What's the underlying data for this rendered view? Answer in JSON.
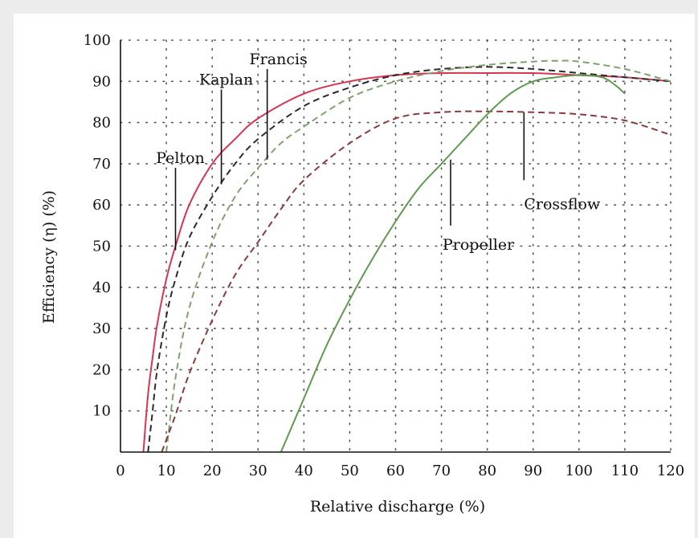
{
  "chart_data": {
    "type": "line",
    "title": "",
    "xlabel": "Relative discharge (%)",
    "ylabel": "Efficiency (η) (%)",
    "xlim": [
      0,
      120
    ],
    "ylim": [
      0,
      100
    ],
    "x_ticks": [
      0,
      10,
      20,
      30,
      40,
      50,
      60,
      70,
      80,
      90,
      100,
      110,
      120
    ],
    "y_ticks": [
      10,
      20,
      30,
      40,
      50,
      60,
      70,
      80,
      90,
      100
    ],
    "grid": "dotted",
    "legend": "none",
    "series": [
      {
        "name": "Pelton",
        "color": "#d6364f",
        "dash": "solid",
        "x": [
          5,
          6,
          7,
          8,
          10,
          12,
          15,
          20,
          25,
          30,
          40,
          50,
          60,
          70,
          80,
          90,
          100,
          110,
          120
        ],
        "y": [
          0,
          14,
          23,
          31,
          42,
          50,
          60,
          70,
          76,
          81,
          87,
          90,
          91.5,
          92,
          92,
          92,
          91.5,
          91,
          90
        ]
      },
      {
        "name": "Kaplan",
        "color": "#2b2b2b",
        "dash": "dashed",
        "x": [
          6,
          7,
          8,
          10,
          12,
          15,
          20,
          25,
          30,
          40,
          50,
          60,
          70,
          80,
          90,
          100,
          110,
          120
        ],
        "y": [
          0,
          10,
          20,
          33,
          42,
          52,
          62,
          70,
          76,
          84,
          88.5,
          91.5,
          93,
          93.5,
          93,
          92,
          91,
          90
        ]
      },
      {
        "name": "Francis",
        "color": "#7ea46c",
        "dash": "dashed",
        "x": [
          10,
          12,
          15,
          20,
          25,
          30,
          35,
          40,
          50,
          60,
          70,
          80,
          90,
          95,
          100,
          110,
          120
        ],
        "y": [
          0,
          18,
          35,
          51,
          62,
          69,
          75,
          79,
          86,
          90,
          92.5,
          94,
          94.8,
          95,
          94.8,
          93,
          90
        ]
      },
      {
        "name": "Crossflow",
        "color": "#8b3a3a",
        "dash": "dashed",
        "x": [
          9,
          10,
          12,
          15,
          20,
          25,
          30,
          35,
          40,
          50,
          60,
          70,
          80,
          90,
          100,
          110,
          120
        ],
        "y": [
          0,
          3,
          9,
          19,
          32,
          43,
          51,
          59,
          66,
          75,
          81,
          82.5,
          82.7,
          82.5,
          82,
          80.5,
          77
        ]
      },
      {
        "name": "Propeller",
        "color": "#5e9a4f",
        "dash": "solid",
        "x": [
          35,
          40,
          45,
          50,
          55,
          60,
          65,
          70,
          75,
          80,
          85,
          90,
          95,
          100,
          105,
          108,
          110
        ],
        "y": [
          0,
          13,
          26,
          37,
          47,
          56,
          64,
          70,
          76,
          82,
          87,
          90,
          91,
          91.5,
          91,
          89,
          87
        ]
      }
    ],
    "annotations": [
      {
        "text": "Pelton",
        "leader_x": 12,
        "leader_y": [
          49,
          69
        ]
      },
      {
        "text": "Kaplan",
        "leader_x": 22,
        "leader_y": [
          65,
          88
        ]
      },
      {
        "text": "Francis",
        "leader_x": 32,
        "leader_y": [
          71,
          93
        ]
      },
      {
        "text": "Crossflow",
        "leader_x": 88,
        "leader_y": [
          66,
          82.5
        ]
      },
      {
        "text": "Propeller",
        "leader_x": 72,
        "leader_y": [
          55,
          71
        ]
      }
    ]
  }
}
